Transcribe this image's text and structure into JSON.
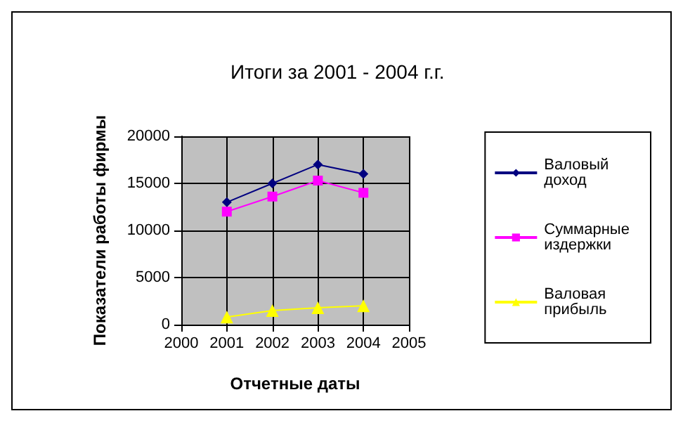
{
  "chart_data": {
    "type": "line",
    "title": "Итоги за 2001 - 2004 г.г.",
    "xlabel": "Отчетные даты",
    "ylabel": "Показатели работы фирмы",
    "x": [
      2001,
      2002,
      2003,
      2004
    ],
    "xlim": [
      2000,
      2005
    ],
    "xticks": [
      2000,
      2001,
      2002,
      2003,
      2004,
      2005
    ],
    "ylim": [
      0,
      20000
    ],
    "yticks": [
      0,
      5000,
      10000,
      15000,
      20000
    ],
    "series": [
      {
        "name": "Валовый доход",
        "color": "#000080",
        "marker": "diamond",
        "values": [
          13000,
          15000,
          17000,
          16000
        ]
      },
      {
        "name": "Суммарные издержки",
        "color": "#ff00ff",
        "marker": "square",
        "values": [
          12000,
          13600,
          15300,
          14000
        ]
      },
      {
        "name": "Валовая прибыль",
        "color": "#ffff00",
        "marker": "triangle",
        "values": [
          800,
          1500,
          1800,
          2000
        ]
      }
    ],
    "grid": true,
    "legend": "right"
  }
}
